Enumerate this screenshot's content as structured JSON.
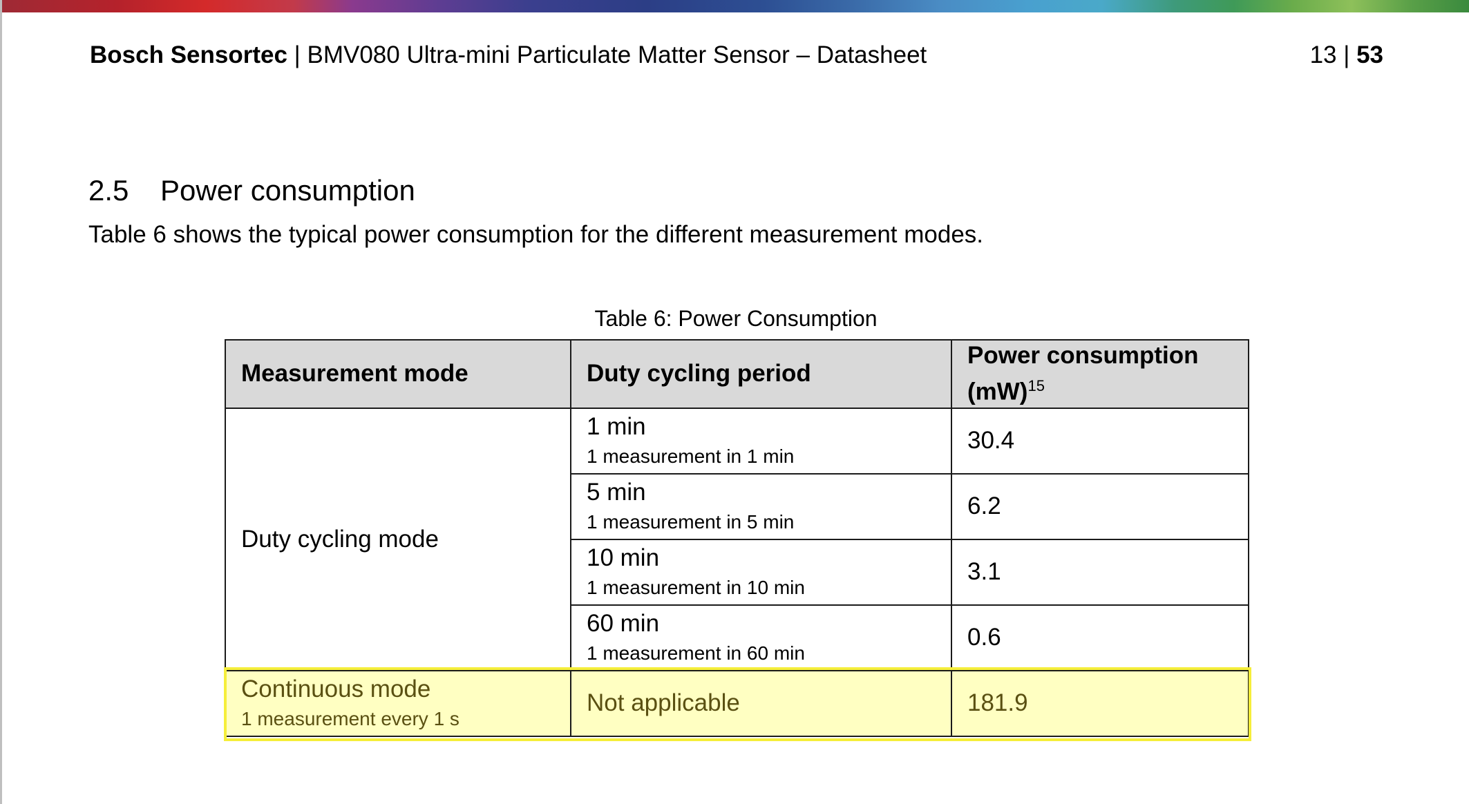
{
  "header": {
    "brand": "Bosch Sensortec",
    "separator": " | ",
    "title": "BMV080 Ultra-mini Particulate Matter Sensor – Datasheet",
    "page_current": "13",
    "page_separator": " | ",
    "page_total": "53"
  },
  "section": {
    "number": "2.5",
    "title": "Power consumption",
    "intro": "Table 6 shows the typical power consumption for the different measurement modes."
  },
  "table": {
    "caption": "Table 6: Power Consumption",
    "headers": {
      "mode": "Measurement mode",
      "period": "Duty cycling period",
      "power": "Power consumption (mW)",
      "power_footnote": "15"
    },
    "duty_mode_label": "Duty cycling mode",
    "rows": [
      {
        "period": "1 min",
        "detail": "1 measurement in 1 min",
        "power": "30.4"
      },
      {
        "period": "5 min",
        "detail": "1 measurement in 5 min",
        "power": "6.2"
      },
      {
        "period": "10 min",
        "detail": "1 measurement in 10 min",
        "power": "3.1"
      },
      {
        "period": "60 min",
        "detail": "1 measurement in 60 min",
        "power": "0.6"
      }
    ],
    "continuous": {
      "mode": "Continuous mode",
      "detail": "1 measurement every 1 s",
      "period": "Not applicable",
      "power": "181.9"
    }
  },
  "colors": {
    "highlight_fill": "#ffffc2",
    "highlight_border": "#f5ee3a",
    "header_fill": "#d9d9d9"
  }
}
